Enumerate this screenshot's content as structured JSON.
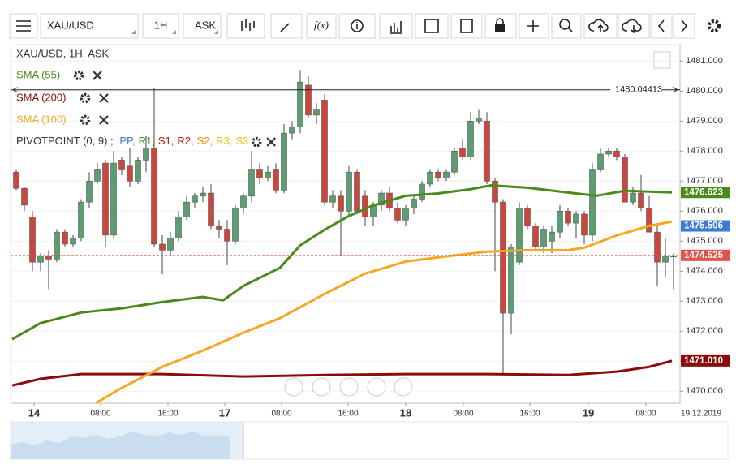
{
  "toolbar": {
    "symbol": "XAU/USD",
    "timeframe": "1H",
    "price_type": "ASK",
    "function_label": "f(x)"
  },
  "legend": {
    "title": "XAU/USD, 1H, ASK",
    "pivot": {
      "name": "PIVOTPOINT (0, 9) ;",
      "items": [
        {
          "name": "PP,",
          "color": "#3a7bd5"
        },
        {
          "name": "R1,",
          "color": "#3a9a3a"
        },
        {
          "name": "S1,",
          "color": "#cc1111"
        },
        {
          "name": "R2,",
          "color": "#cc1111"
        },
        {
          "name": "S2,",
          "color": "#f08a00"
        },
        {
          "name": "R3,",
          "color": "#f0c000"
        },
        {
          "name": "S3",
          "color": "#f0c000"
        }
      ]
    }
  },
  "chart_data": {
    "type": "candlestick",
    "up_color": "#5c9d72",
    "down_color": "#c9473d",
    "open": [
      1477.3,
      1476.76,
      1475.8,
      1474.3,
      1474.5,
      1474.4,
      1475.3,
      1474.9,
      1475.1,
      1476.3,
      1477.0,
      1477.6,
      1475.2,
      1477.7,
      1477.5,
      1477.0,
      1477.7,
      1478.1,
      1474.9,
      1474.7,
      1475.1,
      1475.8,
      1476.3,
      1476.5,
      1476.6,
      1475.5,
      1475.4,
      1475.0,
      1476.1,
      1476.5,
      1477.4,
      1477.1,
      1477.4,
      1476.7,
      1478.6,
      1478.8,
      1480.2,
      1479.2,
      1479.7,
      1476.3,
      1476.5,
      1476.0,
      1477.3,
      1476.5,
      1475.8,
      1476.2,
      1476.6,
      1476.1,
      1475.7,
      1476.1,
      1476.4,
      1476.9,
      1477.3,
      1477.1,
      1477.3,
      1478.1,
      1477.8,
      1479.0,
      1479.0,
      1477.0,
      1476.3,
      1472.6,
      1474.3,
      1476.1,
      1475.5,
      1474.8,
      1475.0,
      1475.3,
      1476.0,
      1475.6,
      1475.9,
      1475.2,
      1477.4,
      1477.9,
      1478.0,
      1477.8,
      1476.3,
      1476.6,
      1476.1,
      1475.3,
      1474.3,
      1474.5
    ],
    "high": [
      1477.4,
      1476.8,
      1476.0,
      1474.6,
      1474.7,
      1475.4,
      1475.4,
      1475.2,
      1476.4,
      1477.3,
      1477.6,
      1477.7,
      1478.0,
      1477.8,
      1478.1,
      1477.8,
      1478.5,
      1480.1,
      1475.2,
      1475.3,
      1476.0,
      1476.5,
      1476.6,
      1476.8,
      1476.9,
      1475.7,
      1475.7,
      1476.2,
      1476.6,
      1478.0,
      1477.6,
      1477.5,
      1477.6,
      1478.9,
      1479.0,
      1480.7,
      1480.5,
      1479.6,
      1479.9,
      1476.7,
      1476.7,
      1477.5,
      1477.4,
      1476.7,
      1476.3,
      1476.7,
      1476.8,
      1476.3,
      1476.2,
      1476.5,
      1477.0,
      1477.4,
      1477.4,
      1477.4,
      1478.1,
      1478.4,
      1479.3,
      1479.4,
      1479.3,
      1477.1,
      1476.4,
      1474.9,
      1476.3,
      1476.2,
      1475.6,
      1475.5,
      1475.5,
      1476.2,
      1476.1,
      1476.0,
      1476.0,
      1477.6,
      1478.1,
      1478.1,
      1478.1,
      1477.9,
      1476.8,
      1477.2,
      1476.5,
      1475.6,
      1475.1,
      1474.6
    ],
    "low": [
      1476.7,
      1476.0,
      1474.0,
      1474.0,
      1473.4,
      1474.3,
      1474.8,
      1474.8,
      1475.0,
      1476.1,
      1476.9,
      1474.8,
      1475.1,
      1477.2,
      1476.8,
      1476.9,
      1477.3,
      1474.8,
      1473.9,
      1474.5,
      1475.0,
      1475.7,
      1476.1,
      1476.3,
      1475.4,
      1475.1,
      1474.2,
      1474.9,
      1475.9,
      1476.3,
      1476.9,
      1477.0,
      1476.6,
      1476.6,
      1478.4,
      1478.6,
      1479.1,
      1478.9,
      1476.2,
      1476.1,
      1474.5,
      1475.8,
      1475.9,
      1475.5,
      1475.5,
      1476.0,
      1476.0,
      1475.6,
      1475.5,
      1475.9,
      1476.3,
      1476.8,
      1477.0,
      1477.0,
      1477.2,
      1477.7,
      1477.7,
      1478.9,
      1476.9,
      1474.0,
      1470.6,
      1471.9,
      1474.2,
      1475.4,
      1474.7,
      1474.6,
      1474.6,
      1475.1,
      1475.5,
      1475.1,
      1474.9,
      1475.0,
      1477.3,
      1477.8,
      1477.7,
      1476.3,
      1476.2,
      1476.0,
      1475.3,
      1473.5,
      1473.8,
      1473.4
    ],
    "close": [
      1476.76,
      1476.2,
      1474.3,
      1474.5,
      1474.4,
      1475.3,
      1474.9,
      1475.1,
      1476.3,
      1477.0,
      1477.4,
      1475.2,
      1477.6,
      1477.4,
      1477.0,
      1477.7,
      1478.1,
      1474.9,
      1474.7,
      1475.1,
      1475.8,
      1476.3,
      1476.5,
      1476.6,
      1475.5,
      1475.4,
      1475.0,
      1476.1,
      1476.5,
      1477.4,
      1477.1,
      1477.3,
      1476.7,
      1478.6,
      1478.8,
      1480.3,
      1479.2,
      1479.4,
      1476.3,
      1476.5,
      1476.0,
      1477.3,
      1476.0,
      1475.8,
      1476.2,
      1476.6,
      1476.1,
      1475.7,
      1476.1,
      1476.4,
      1476.9,
      1477.3,
      1477.1,
      1477.3,
      1478.0,
      1477.8,
      1479.0,
      1479.1,
      1477.0,
      1476.3,
      1472.6,
      1474.8,
      1476.1,
      1475.5,
      1474.8,
      1475.4,
      1475.3,
      1476.0,
      1475.6,
      1475.9,
      1475.2,
      1477.4,
      1477.9,
      1478.0,
      1477.8,
      1476.3,
      1476.6,
      1476.1,
      1475.3,
      1474.3,
      1474.5,
      1474.5
    ],
    "xlim": [
      -0.7,
      81.8
    ],
    "xticks": [
      {
        "value": 2.2,
        "label": "14"
      },
      {
        "value": 10.4,
        "label": "08:00"
      },
      {
        "value": 18.7,
        "label": "16:00"
      },
      {
        "value": 25.7,
        "label": "17"
      },
      {
        "value": 32.7,
        "label": "08:00"
      },
      {
        "value": 40.9,
        "label": "16:00"
      },
      {
        "value": 48,
        "label": "18"
      },
      {
        "value": 55.1,
        "label": "08:00"
      },
      {
        "value": 63.3,
        "label": "16:00"
      },
      {
        "value": 70.5,
        "label": "19"
      },
      {
        "value": 77.6,
        "label": "08:00"
      }
    ],
    "date_label": "19.12.2019",
    "ylim": [
      1469.6,
      1481.55
    ],
    "yticks": [
      {
        "value": 1470,
        "label": "1470.000"
      },
      {
        "value": 1471,
        "label": "1471.000"
      },
      {
        "value": 1472,
        "label": "1472.000"
      },
      {
        "value": 1473,
        "label": "1473.000"
      },
      {
        "value": 1474,
        "label": "1474.000"
      },
      {
        "value": 1475,
        "label": "1475.000"
      },
      {
        "value": 1476,
        "label": "1476.000"
      },
      {
        "value": 1477,
        "label": "1477.000"
      },
      {
        "value": 1478,
        "label": "1478.000"
      },
      {
        "value": 1479,
        "label": "1479.000"
      },
      {
        "value": 1480,
        "label": "1480.000"
      },
      {
        "value": 1481,
        "label": "1481.000"
      }
    ],
    "overlays": [
      {
        "name": "SMA (55)",
        "color": "#4a8a1a",
        "badge": true,
        "x": [
          -0.5,
          3,
          8,
          13,
          18,
          23,
          25.5,
          28,
          32.5,
          35,
          38,
          41,
          44,
          48,
          52,
          56,
          58.5,
          63,
          68,
          71.5,
          75,
          78,
          80.8
        ],
        "values": [
          1471.73,
          1472.27,
          1472.62,
          1472.76,
          1472.97,
          1473.14,
          1473.03,
          1473.51,
          1474.11,
          1474.86,
          1475.38,
          1475.84,
          1476.19,
          1476.51,
          1476.59,
          1476.73,
          1476.86,
          1476.78,
          1476.62,
          1476.51,
          1476.68,
          1476.65,
          1476.623
        ]
      },
      {
        "name": "SMA (200)",
        "color": "#8b0a0a",
        "badge": true,
        "badge_label": "1471.010",
        "x": [
          -0.5,
          3,
          8,
          18,
          28,
          38,
          48,
          58,
          68,
          74,
          78,
          80.8
        ],
        "values": [
          1470.19,
          1470.41,
          1470.57,
          1470.57,
          1470.49,
          1470.54,
          1470.57,
          1470.57,
          1470.54,
          1470.65,
          1470.81,
          1471.01
        ]
      },
      {
        "name": "SMA (100)",
        "color": "#f5a623",
        "badge": false,
        "x": [
          9.8,
          13,
          18,
          23,
          28,
          32.5,
          38,
          43,
          48,
          52,
          58,
          63,
          68,
          70,
          74,
          78,
          80.8
        ],
        "values": [
          1469.6,
          1470.11,
          1470.81,
          1471.35,
          1471.95,
          1472.43,
          1473.24,
          1473.92,
          1474.32,
          1474.46,
          1474.65,
          1474.7,
          1474.7,
          1474.78,
          1475.19,
          1475.51,
          1475.65
        ]
      }
    ],
    "price_lines": [
      {
        "value": 1480.04413,
        "color": "#222",
        "on_line_label": true
      },
      {
        "value": 1475.506,
        "color": "#3a7bd5",
        "badge": true
      },
      {
        "value": 1474.525,
        "color": "#e0534a",
        "dashed": true,
        "badge": true
      }
    ]
  }
}
